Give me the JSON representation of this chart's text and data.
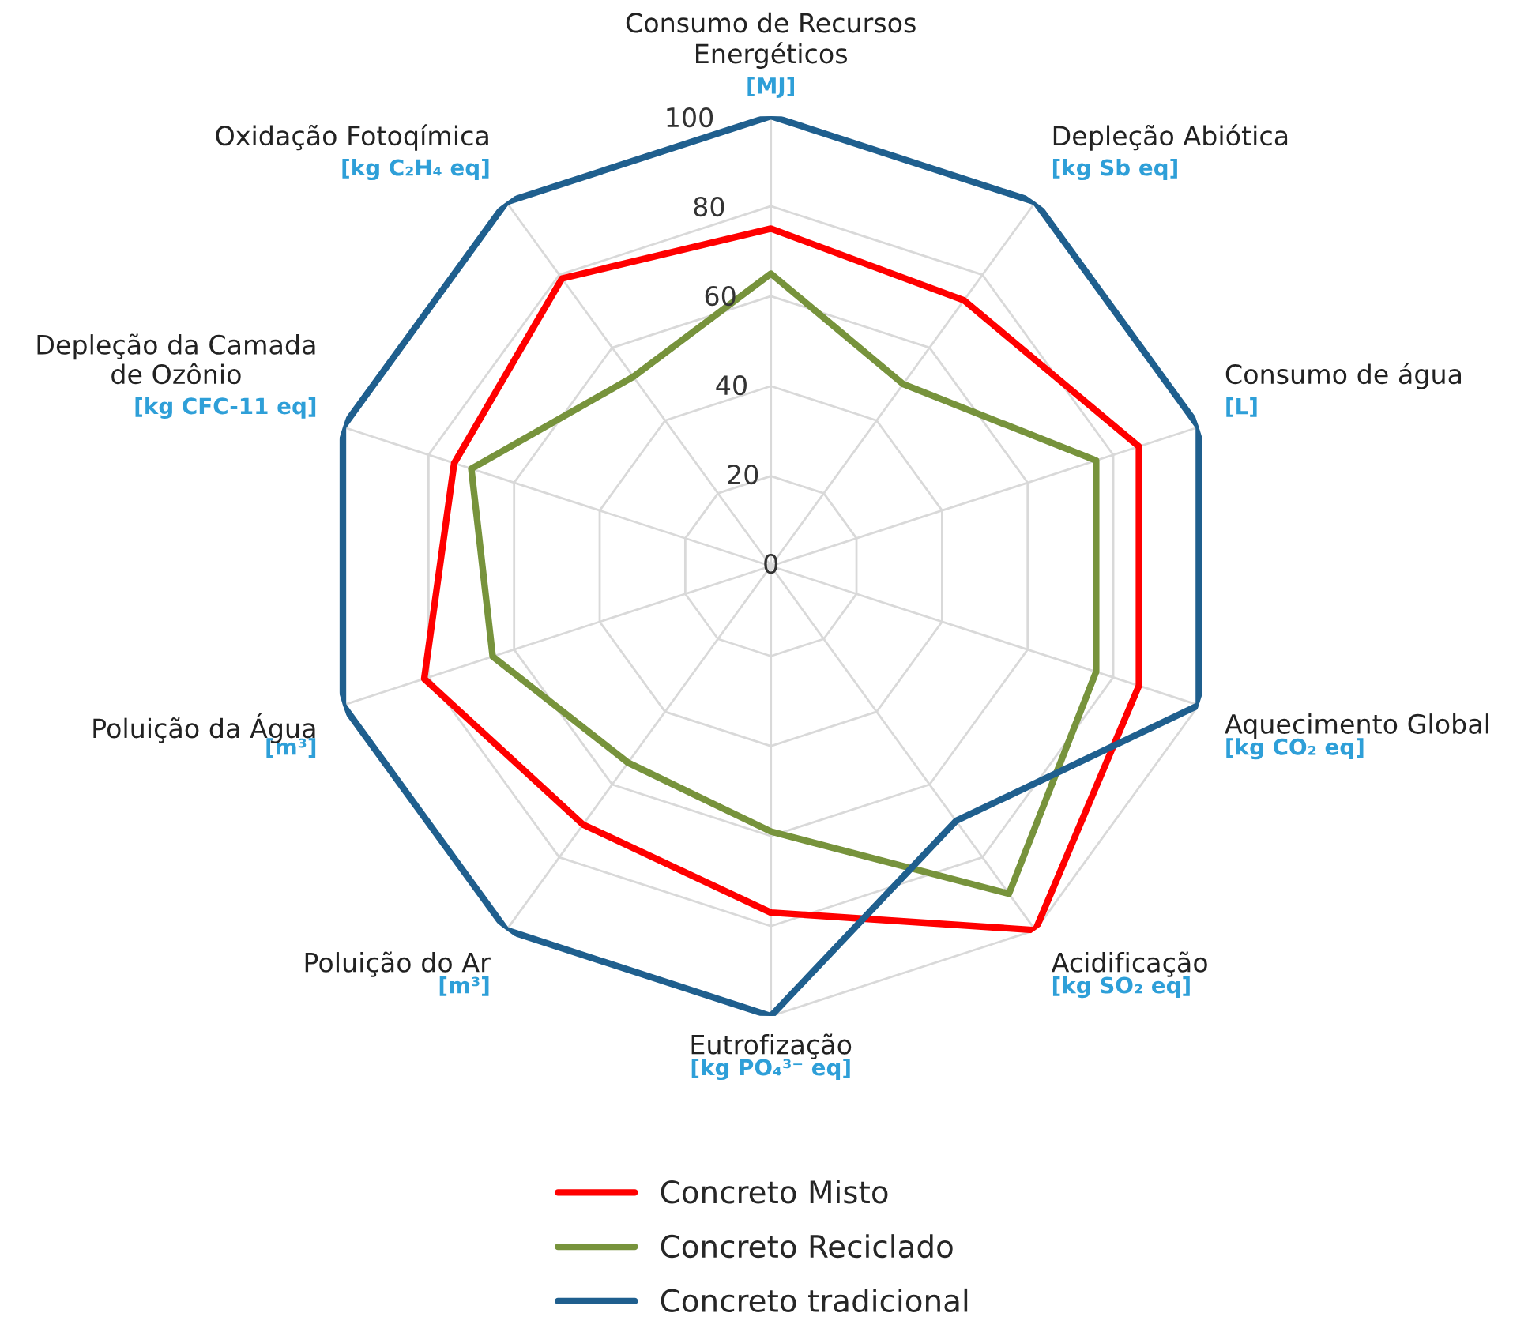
{
  "chart_data": {
    "type": "radar",
    "categories": [
      "Consumo de Recursos\nEnergéticos\n[MJ]",
      "Depleção Abiótica\n[kg Sb eq]",
      "Consumo de água\n[L]",
      "Aquecimento Global\n[kg CO₂ eq]",
      "Acidificação\n[kg SO₂ eq]",
      "Eutrofização\n[kg PO₄³⁻ eq]",
      "Poluição do Ar\n[m³]",
      "Poluição da Água\n[m³]",
      "Depleção da Camada\nde Ozônio\n[kg CFC-11 eq]",
      "Oxidação Fotoqímica\n[kg C₂H₄ eq]"
    ],
    "series": [
      {
        "name": "Concreto Misto",
        "color": "#ff0000",
        "values": [
          75,
          73,
          86,
          86,
          100,
          77,
          71,
          81,
          74,
          79
        ]
      },
      {
        "name": "Concreto Reciclado",
        "color": "#77933c",
        "values": [
          65,
          50,
          76,
          76,
          90,
          59,
          54,
          65,
          70,
          52
        ]
      },
      {
        "name": "Concreto tradicional",
        "color": "#1f5f8e",
        "values": [
          100,
          100,
          100,
          100,
          70,
          100,
          100,
          100,
          100,
          100
        ]
      }
    ],
    "ylim": [
      0,
      100
    ],
    "yticks": [
      0,
      20,
      40,
      60,
      80,
      100
    ],
    "grid": true,
    "legend": "bottom"
  }
}
